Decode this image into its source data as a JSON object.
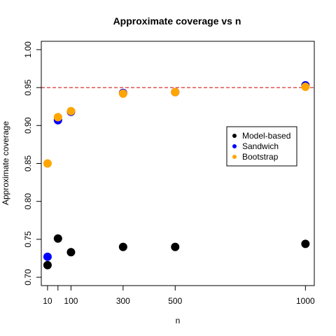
{
  "chart_data": {
    "type": "scatter",
    "title": "Approximate coverage vs n",
    "xlabel": "n",
    "ylabel": "Approximate coverage",
    "x": [
      10,
      50,
      100,
      300,
      500,
      1000
    ],
    "xticks": [
      "10",
      "100",
      "300",
      "500",
      "1000"
    ],
    "xtick_values": [
      10,
      50,
      100,
      300,
      500,
      1000
    ],
    "xtick_label_values": [
      10,
      100,
      300,
      500,
      1000
    ],
    "xlim": [
      -14,
      1034
    ],
    "yticks": [
      "0.70",
      "0.75",
      "0.80",
      "0.85",
      "0.90",
      "0.95",
      "1.00"
    ],
    "ytick_values": [
      0.7,
      0.75,
      0.8,
      0.85,
      0.9,
      0.95,
      1.0
    ],
    "ylim": [
      0.689,
      1.011
    ],
    "reference_line": {
      "y": 0.95,
      "color": "#cc0000",
      "style": "dashed"
    },
    "grid": false,
    "legend_position": "right",
    "series": [
      {
        "name": "Model-based",
        "color": "#000000",
        "values": [
          0.716,
          0.751,
          0.733,
          0.74,
          0.74,
          0.744
        ]
      },
      {
        "name": "Sandwich",
        "color": "#0000ff",
        "values": [
          0.727,
          0.907,
          0.918,
          0.943,
          0.944,
          0.953
        ]
      },
      {
        "name": "Bootstrap",
        "color": "#ffa500",
        "values": [
          0.85,
          0.911,
          0.919,
          0.942,
          0.944,
          0.951
        ]
      }
    ]
  }
}
